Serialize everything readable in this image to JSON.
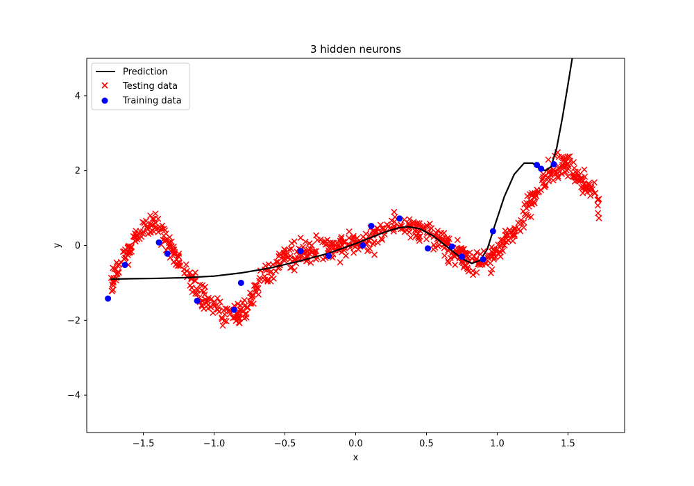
{
  "chart_data": {
    "type": "scatter",
    "title": "3 hidden neurons",
    "xlabel": "x",
    "ylabel": "y",
    "xlim": [
      -1.9,
      1.9
    ],
    "ylim": [
      -5,
      5
    ],
    "xticks": [
      -1.5,
      -1.0,
      -0.5,
      0.0,
      0.5,
      1.0,
      1.5
    ],
    "xtick_labels": [
      "−1.5",
      "−1.0",
      "−0.5",
      "0.0",
      "0.5",
      "1.0",
      "1.5"
    ],
    "yticks": [
      -4,
      -2,
      0,
      2,
      4
    ],
    "ytick_labels": [
      "−4",
      "−2",
      "0",
      "2",
      "4"
    ],
    "grid": false,
    "legend_position": "upper-left",
    "legend": [
      {
        "label": "Prediction",
        "marker": "line",
        "color": "#000000"
      },
      {
        "label": "Testing data",
        "marker": "x",
        "color": "#ff0000"
      },
      {
        "label": "Training data",
        "marker": "circle",
        "color": "#0000ff"
      }
    ],
    "series": [
      {
        "name": "Prediction",
        "kind": "line",
        "color": "#000000",
        "points": [
          [
            -1.73,
            -0.9
          ],
          [
            -1.6,
            -0.89
          ],
          [
            -1.4,
            -0.88
          ],
          [
            -1.2,
            -0.86
          ],
          [
            -1.0,
            -0.82
          ],
          [
            -0.8,
            -0.73
          ],
          [
            -0.6,
            -0.6
          ],
          [
            -0.4,
            -0.42
          ],
          [
            -0.2,
            -0.22
          ],
          [
            0.0,
            0.05
          ],
          [
            0.1,
            0.2
          ],
          [
            0.2,
            0.35
          ],
          [
            0.3,
            0.47
          ],
          [
            0.37,
            0.5
          ],
          [
            0.45,
            0.45
          ],
          [
            0.55,
            0.25
          ],
          [
            0.65,
            -0.05
          ],
          [
            0.75,
            -0.35
          ],
          [
            0.82,
            -0.48
          ],
          [
            0.88,
            -0.4
          ],
          [
            0.93,
            -0.1
          ],
          [
            0.98,
            0.5
          ],
          [
            1.05,
            1.3
          ],
          [
            1.12,
            1.9
          ],
          [
            1.19,
            2.2
          ],
          [
            1.25,
            2.2
          ],
          [
            1.3,
            2.05
          ],
          [
            1.34,
            2.0
          ],
          [
            1.38,
            2.1
          ],
          [
            1.42,
            2.6
          ],
          [
            1.46,
            3.4
          ],
          [
            1.5,
            4.3
          ],
          [
            1.53,
            5.0
          ]
        ]
      },
      {
        "name": "Testing data",
        "kind": "scatter-x",
        "color": "#ff0000",
        "count": 800,
        "noise_sd": 0.28,
        "trend": [
          [
            -1.73,
            -1.0
          ],
          [
            -1.6,
            -0.1
          ],
          [
            -1.5,
            0.45
          ],
          [
            -1.42,
            0.55
          ],
          [
            -1.35,
            0.3
          ],
          [
            -1.25,
            -0.4
          ],
          [
            -1.15,
            -1.0
          ],
          [
            -1.05,
            -1.5
          ],
          [
            -0.95,
            -1.8
          ],
          [
            -0.87,
            -1.9
          ],
          [
            -0.8,
            -1.7
          ],
          [
            -0.7,
            -1.1
          ],
          [
            -0.6,
            -0.7
          ],
          [
            -0.5,
            -0.3
          ],
          [
            -0.4,
            -0.2
          ],
          [
            -0.3,
            -0.1
          ],
          [
            -0.2,
            -0.1
          ],
          [
            -0.1,
            -0.05
          ],
          [
            0.0,
            0.0
          ],
          [
            0.1,
            0.2
          ],
          [
            0.2,
            0.4
          ],
          [
            0.3,
            0.55
          ],
          [
            0.38,
            0.55
          ],
          [
            0.45,
            0.35
          ],
          [
            0.55,
            0.2
          ],
          [
            0.65,
            -0.05
          ],
          [
            0.75,
            -0.35
          ],
          [
            0.85,
            -0.5
          ],
          [
            0.95,
            -0.35
          ],
          [
            1.05,
            0.1
          ],
          [
            1.15,
            0.6
          ],
          [
            1.25,
            1.2
          ],
          [
            1.35,
            1.8
          ],
          [
            1.45,
            2.2
          ],
          [
            1.52,
            2.1
          ],
          [
            1.6,
            1.7
          ],
          [
            1.67,
            1.5
          ],
          [
            1.72,
            1.1
          ]
        ]
      },
      {
        "name": "Training data",
        "kind": "scatter-circle",
        "color": "#0000ff",
        "points": [
          [
            -1.75,
            -1.42
          ],
          [
            -1.63,
            -0.52
          ],
          [
            -1.39,
            0.08
          ],
          [
            -1.33,
            -0.22
          ],
          [
            -1.12,
            -1.48
          ],
          [
            -0.86,
            -1.72
          ],
          [
            -0.81,
            -1.0
          ],
          [
            -0.39,
            -0.15
          ],
          [
            -0.19,
            -0.28
          ],
          [
            0.05,
            0.0
          ],
          [
            0.11,
            0.52
          ],
          [
            0.31,
            0.72
          ],
          [
            0.51,
            -0.08
          ],
          [
            0.68,
            -0.03
          ],
          [
            0.75,
            -0.3
          ],
          [
            0.9,
            -0.37
          ],
          [
            0.97,
            0.38
          ],
          [
            1.28,
            2.15
          ],
          [
            1.31,
            2.05
          ],
          [
            1.4,
            2.17
          ]
        ]
      }
    ]
  }
}
